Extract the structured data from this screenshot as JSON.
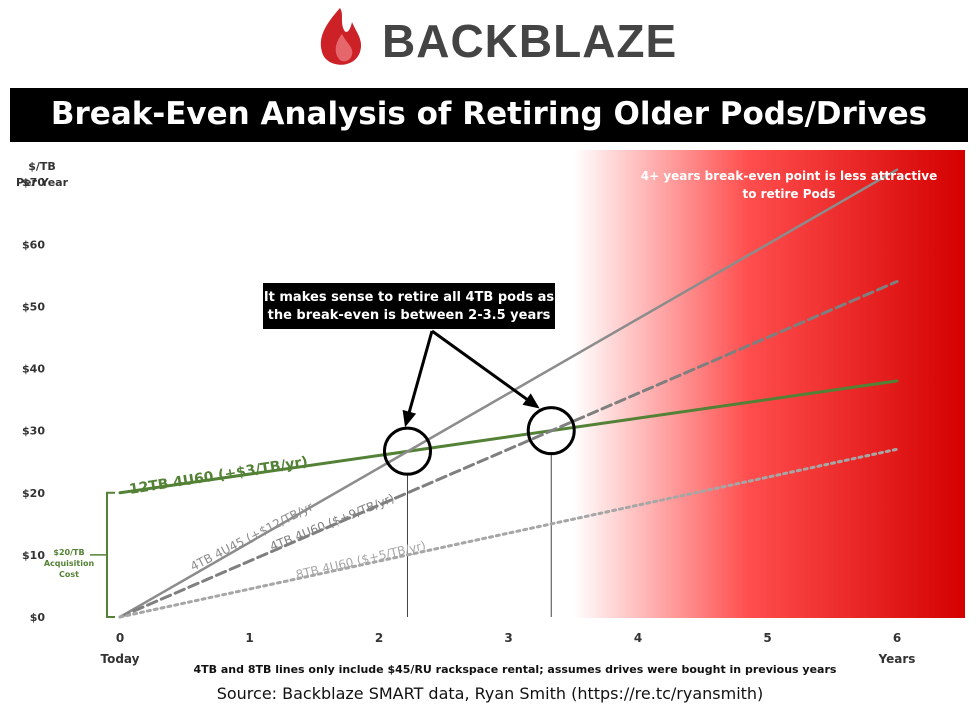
{
  "brand": {
    "name": "BACKBLAZE",
    "brand_color": "#cc2127"
  },
  "title": "Break-Even Analysis of Retiring Older Pods/Drives",
  "source": "Source: Backblaze SMART data, Ryan Smith (https://re.tc/ryansmith)",
  "chart_data": {
    "type": "line",
    "ylabel": [
      "$/TB",
      "Per Year"
    ],
    "xlabel_left": "Today",
    "xlabel_right": "Years",
    "xlim": [
      0,
      6
    ],
    "ylim": [
      0,
      80
    ],
    "x_ticks": [
      "0",
      "1",
      "2",
      "3",
      "4",
      "5",
      "6"
    ],
    "y_ticks": [
      "$0",
      "$10",
      "$20",
      "$30",
      "$40",
      "$50",
      "$60",
      "$70"
    ],
    "series": [
      {
        "name": "12TB 4U60 (+$3/TB/yr)",
        "x": [
          0,
          6
        ],
        "y": [
          20,
          38
        ],
        "style": "solid",
        "color": "#538135",
        "width": 3
      },
      {
        "name": "4TB 4U45 (+$12/TB/yr",
        "x": [
          0,
          6
        ],
        "y": [
          0,
          72
        ],
        "style": "solid",
        "color": "#8c8c8c",
        "width": 2.5
      },
      {
        "name": "4TB 4U60 ($+9/TB/yr)",
        "x": [
          0,
          6
        ],
        "y": [
          0,
          54
        ],
        "style": "dashed",
        "color": "#7f7f7f",
        "width": 3
      },
      {
        "name": "8TB 4U60 ($+5/TB/yr)",
        "x": [
          0,
          6
        ],
        "y": [
          0,
          27
        ],
        "style": "dotted",
        "color": "#a6a6a6",
        "width": 3
      }
    ],
    "break_even_points": [
      {
        "x": 2.22,
        "y": 26.7
      },
      {
        "x": 3.33,
        "y": 30
      }
    ],
    "acquisition_cost": {
      "label": [
        "$20/TB",
        "Acquisition",
        "Cost"
      ],
      "from": 0,
      "to": 20,
      "color": "#538135"
    },
    "red_zone_start_x": 3.5,
    "annotations": {
      "callout": [
        "It makes sense to retire all 4TB pods as",
        "the break-even is between 2-3.5 years"
      ],
      "red_zone": [
        "4+ years break-even point is less attractive",
        "to retire Pods"
      ],
      "footnote": "4TB and 8TB lines only include $45/RU rackspace rental; assumes drives were bought in previous years"
    },
    "colors": {
      "red_zone": "#e00000",
      "callout_bg": "#000000",
      "callout_text": "#ffffff"
    }
  }
}
